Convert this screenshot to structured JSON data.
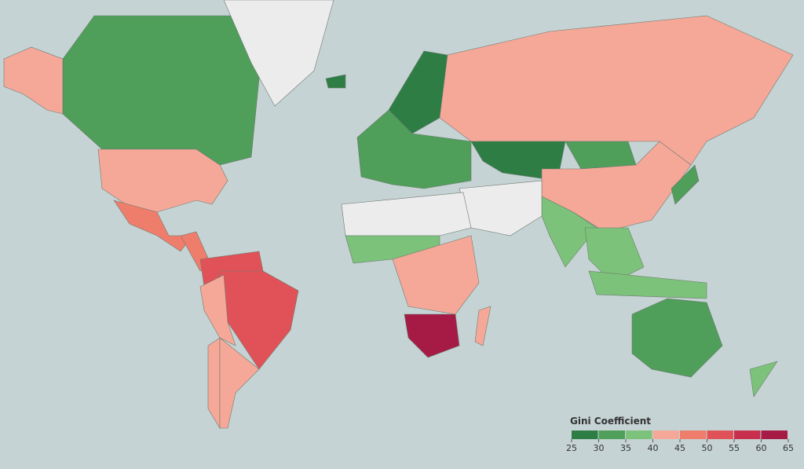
{
  "legend": {
    "title": "Gini Coefficient",
    "ticks": [
      25,
      30,
      35,
      40,
      45,
      50,
      55,
      60,
      65
    ],
    "colors": [
      "#2e7d45",
      "#4f9e5a",
      "#7cc27a",
      "#f6a898",
      "#ee7d6c",
      "#e05258",
      "#c72f4d",
      "#a51b45"
    ],
    "no_data_color": "#ececec"
  },
  "regions": [
    41,
    33,
    41,
    45,
    48,
    51,
    53,
    43,
    44,
    41,
    null,
    27,
    27,
    30,
    41,
    28,
    33,
    42,
    36,
    null,
    null,
    35,
    44,
    63,
    42,
    37,
    38,
    34,
    35,
    33
  ]
}
